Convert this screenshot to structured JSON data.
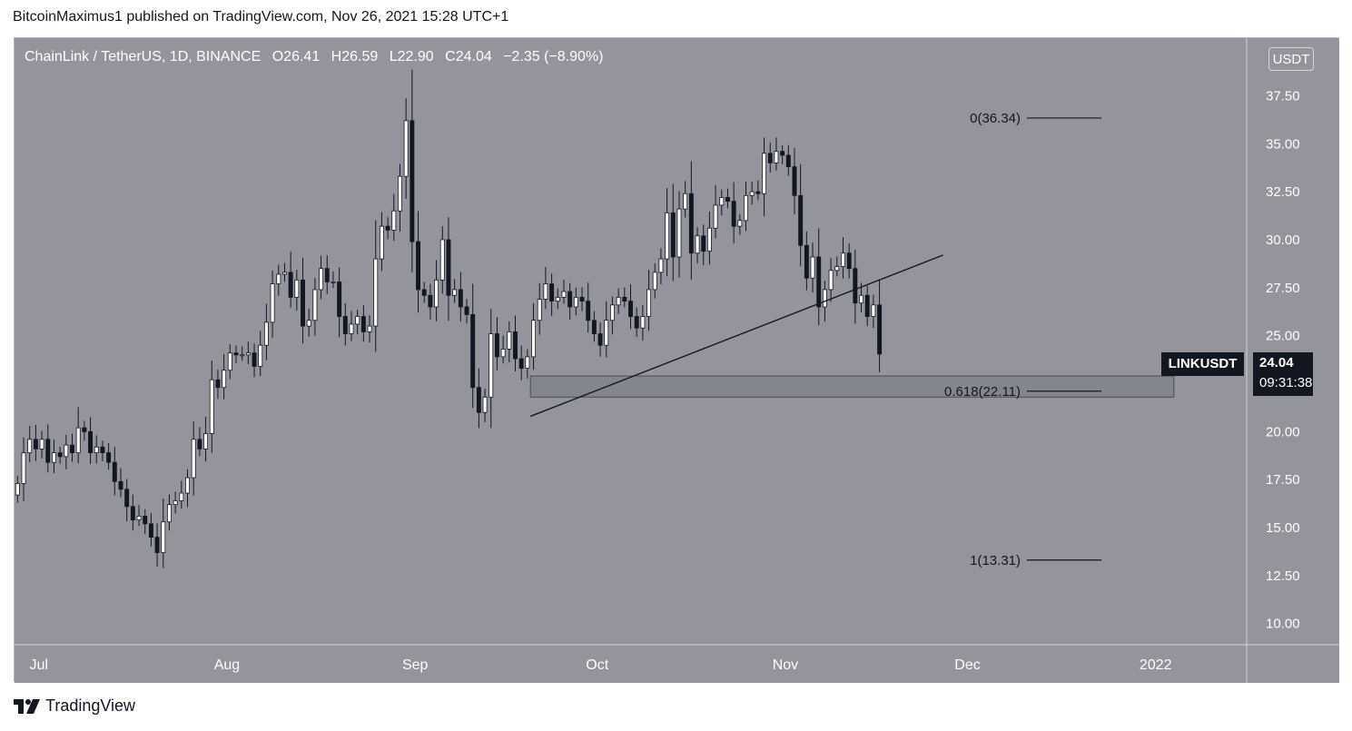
{
  "header": {
    "published_text": "BitcoinMaximus1 published on TradingView.com, Nov 26, 2021 15:28 UTC+1"
  },
  "legend": {
    "symbol_text": "ChainLink / TetherUS, 1D, BINANCE",
    "open_label": "O",
    "open_value": "26.41",
    "high_label": "H",
    "high_value": "26.59",
    "low_label": "L",
    "low_value": "22.90",
    "close_label": "C",
    "close_value": "24.04",
    "change": "−2.35 (−8.90%)"
  },
  "unit_button": "USDT",
  "price_tag": {
    "symbol": "LINKUSDT",
    "price": "24.04",
    "countdown": "09:31:38"
  },
  "footer": {
    "brand": "TradingView",
    "logo_icon": "tradingview-logo-icon"
  },
  "colors": {
    "background": "#93949c",
    "up_body": "#ffffff",
    "down_body": "#131722",
    "wick": "#131722",
    "axis_text": "#ffffff",
    "drawing": "#131722"
  },
  "chart_data": {
    "type": "candlestick",
    "symbol": "LINKUSDT",
    "interval": "1D",
    "y_ticks": [
      "10.00",
      "12.50",
      "15.00",
      "17.50",
      "20.00",
      "22.50",
      "25.00",
      "27.50",
      "30.00",
      "32.50",
      "35.00",
      "37.50"
    ],
    "ylim": [
      8.9,
      40.5
    ],
    "x_ticks": [
      {
        "label": "Jul",
        "date": "2021-07-01"
      },
      {
        "label": "Aug",
        "date": "2021-08-01"
      },
      {
        "label": "Sep",
        "date": "2021-09-01"
      },
      {
        "label": "Oct",
        "date": "2021-10-01"
      },
      {
        "label": "Nov",
        "date": "2021-11-01"
      },
      {
        "label": "Dec",
        "date": "2021-12-01"
      },
      {
        "label": "2022",
        "date": "2022-01-01"
      }
    ],
    "x_range": [
      "2021-06-27",
      "2022-01-16"
    ],
    "close_series": {
      "start_date": "2021-06-27",
      "closes": [
        17.3,
        18.9,
        19.6,
        19.1,
        19.6,
        18.4,
        18.9,
        18.7,
        19.3,
        18.9,
        20.2,
        20.0,
        18.9,
        19.2,
        18.9,
        18.4,
        17.4,
        17.0,
        16.1,
        15.4,
        15.6,
        15.2,
        14.5,
        13.7,
        15.3,
        16.2,
        16.4,
        16.8,
        17.6,
        19.6,
        19.1,
        19.9,
        22.7,
        22.3,
        23.2,
        24.1,
        24.0,
        24.0,
        24.1,
        23.4,
        24.5,
        25.7,
        27.7,
        28.2,
        28.3,
        27.0,
        27.9,
        25.5,
        25.8,
        27.4,
        28.5,
        27.8,
        27.8,
        26.0,
        25.1,
        25.6,
        26.0,
        25.2,
        25.5,
        29.0,
        30.7,
        30.5,
        31.5,
        33.3,
        36.2,
        29.9,
        27.4,
        27.1,
        26.5,
        27.9,
        30.0,
        27.1,
        27.4,
        26.5,
        26.1,
        22.3,
        21.0,
        21.8,
        25.1,
        23.9,
        24.3,
        25.2,
        23.8,
        23.3,
        23.9,
        25.8,
        26.9,
        27.7,
        26.8,
        27.0,
        27.3,
        26.5,
        27.0,
        26.8,
        25.8,
        25.1,
        24.5,
        25.8,
        26.6,
        27.0,
        26.8,
        26.0,
        25.4,
        26.0,
        27.4,
        28.3,
        29.0,
        31.4,
        29.1,
        31.6,
        32.4,
        29.3,
        30.2,
        29.4,
        30.6,
        31.8,
        32.2,
        32.0,
        30.7,
        31.0,
        32.3,
        32.5,
        32.4,
        34.5,
        34.0,
        34.6,
        34.4,
        33.8,
        32.3,
        29.7,
        28.0,
        29.1,
        26.5,
        27.4,
        28.4,
        28.6,
        29.3,
        28.5,
        26.7,
        27.1,
        26.0,
        26.6,
        24.04
      ],
      "note": "approximate daily closes read from candles; the open of each day equals the prior close"
    },
    "horizontal_levels": [
      {
        "label": "0(36.34)",
        "value": 36.34
      },
      {
        "label": "0.618(22.11)",
        "value": 22.11
      },
      {
        "label": "1(13.31)",
        "value": 13.31
      }
    ],
    "support_zone": {
      "from": 21.8,
      "to": 22.9,
      "start": "2021-09-20",
      "end": "2022-01-04"
    },
    "trendline": {
      "start": {
        "date": "2021-09-20",
        "value": 20.8
      },
      "end": {
        "date": "2021-11-27",
        "value": 29.2
      }
    }
  }
}
